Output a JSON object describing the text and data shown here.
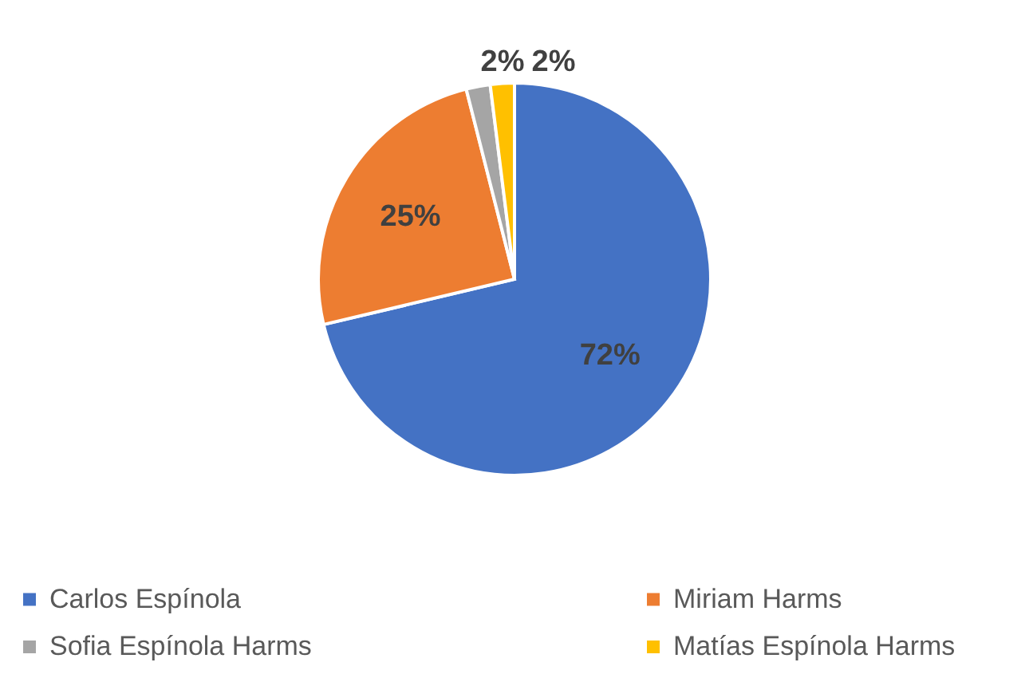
{
  "chart_data": {
    "type": "pie",
    "categories": [
      "Carlos Espínola",
      "Miriam Harms",
      "Sofia Espínola Harms",
      "Matías Espínola Harms"
    ],
    "values": [
      72,
      25,
      2,
      2
    ],
    "colors": [
      "#4472c4",
      "#ed7d31",
      "#a5a5a5",
      "#ffc000"
    ],
    "value_labels": [
      "72%",
      "25%",
      "2%",
      "2%"
    ],
    "legend": "bottom"
  }
}
